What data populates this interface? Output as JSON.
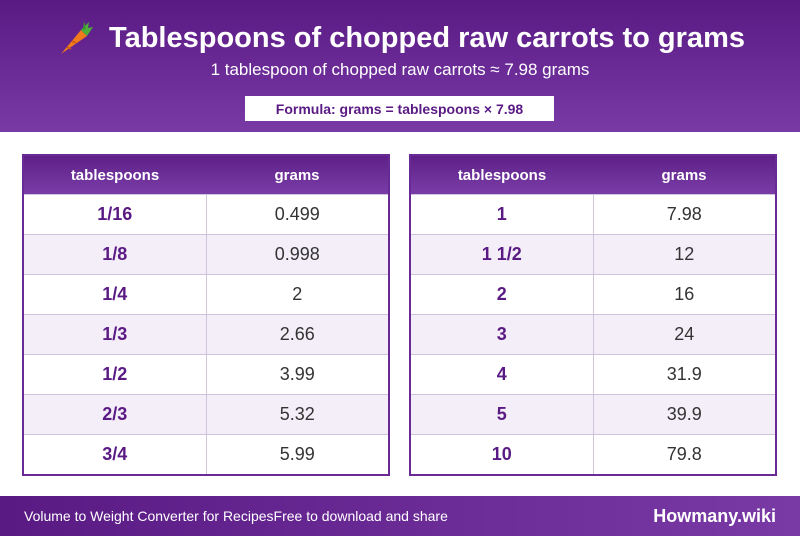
{
  "header": {
    "title": "Tablespoons of chopped raw carrots to grams",
    "subtitle": "1 tablespoon of chopped raw carrots ≈ 7.98 grams",
    "formula": "Formula: grams = tablespoons × 7.98",
    "icon": "carrot-icon"
  },
  "tables": {
    "left": {
      "headers": [
        "tablespoons",
        "grams"
      ],
      "rows": [
        [
          "1/16",
          "0.499"
        ],
        [
          "1/8",
          "0.998"
        ],
        [
          "1/4",
          "2"
        ],
        [
          "1/3",
          "2.66"
        ],
        [
          "1/2",
          "3.99"
        ],
        [
          "2/3",
          "5.32"
        ],
        [
          "3/4",
          "5.99"
        ]
      ]
    },
    "right": {
      "headers": [
        "tablespoons",
        "grams"
      ],
      "rows": [
        [
          "1",
          "7.98"
        ],
        [
          "1 1/2",
          "12"
        ],
        [
          "2",
          "16"
        ],
        [
          "3",
          "24"
        ],
        [
          "4",
          "31.9"
        ],
        [
          "5",
          "39.9"
        ],
        [
          "10",
          "79.8"
        ]
      ]
    }
  },
  "footer": {
    "left_text_1": "Volume to Weight Converter for Recipes",
    "left_text_2": "Free to download and share",
    "brand": "Howmany.wiki"
  },
  "colors": {
    "brand_purple": "#5a1a84",
    "accent_purple": "#7a3aa6",
    "row_alt": "#f4eef8"
  }
}
